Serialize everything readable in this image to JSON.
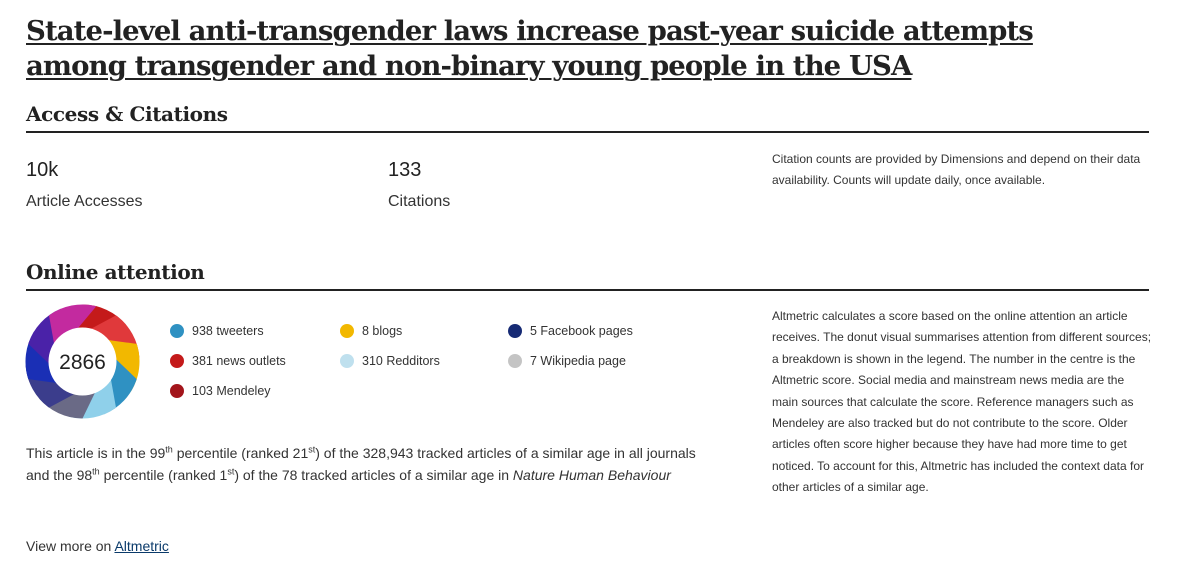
{
  "article": {
    "title": "State-level anti-transgender laws increase past-year suicide attempts among transgender and non-binary young people in the USA"
  },
  "access": {
    "heading": "Access & Citations",
    "metrics": [
      {
        "value": "10k",
        "label": "Article Accesses"
      },
      {
        "value": "133",
        "label": "Citations"
      }
    ],
    "note": "Citation counts are provided by Dimensions and depend on their data availability. Counts will update daily, once available."
  },
  "attention": {
    "heading": "Online attention",
    "score": "2866",
    "legend": [
      {
        "label": "938 tweeters",
        "color": "#2f91c2",
        "icon": "tweeters-dot"
      },
      {
        "label": "8 blogs",
        "color": "#f2b800",
        "icon": "blogs-dot"
      },
      {
        "label": "5 Facebook pages",
        "color": "#162a74",
        "icon": "facebook-dot"
      },
      {
        "label": "381 news outlets",
        "color": "#c41a1a",
        "icon": "news-dot"
      },
      {
        "label": "310 Redditors",
        "color": "#bfe0ee",
        "icon": "reddit-dot"
      },
      {
        "label": "7 Wikipedia page",
        "color": "#c4c4c4",
        "icon": "wikipedia-dot"
      },
      {
        "label": "103 Mendeley",
        "color": "#a3151b",
        "icon": "mendeley-dot"
      }
    ],
    "donut_colors": [
      "#c41a1a",
      "#e0393b",
      "#f2b800",
      "#2f91c2",
      "#8fd0ea",
      "#6a6a86",
      "#3b3d8c",
      "#1a2fb5",
      "#4a22a8",
      "#c32a9f"
    ],
    "percentile": {
      "p1_pre": "This article is in the 99",
      "p1_sup": "th",
      "p1_mid": " percentile (ranked 21",
      "p1_sup2": "st",
      "p1_post": ") of the 328,943 tracked articles of a similar age in all journals and the 98",
      "p2_sup": "th",
      "p2_mid": " percentile (ranked 1",
      "p2_sup2": "st",
      "p2_post": ") of the 78 tracked articles of a similar age in ",
      "journal": "Nature Human Behaviour"
    },
    "note": "Altmetric calculates a score based on the online attention an article receives. The donut visual summarises attention from different sources; a breakdown is shown in the legend. The number in the centre is the Altmetric score. Social media and mainstream news media are the main sources that calculate the score. Reference managers such as Mendeley are also tracked but do not contribute to the score. Older articles often score higher because they have had more time to get noticed. To account for this, Altmetric has included the context data for other articles of a similar age.",
    "view_more_text": "View more on ",
    "view_more_link": "Altmetric"
  }
}
